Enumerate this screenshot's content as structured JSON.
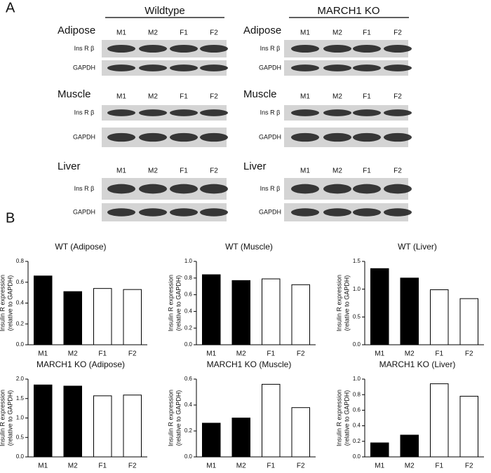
{
  "panel_labels": [
    "A",
    "B"
  ],
  "panel_a": {
    "groups": [
      {
        "title": "Wildtype",
        "tissues": [
          {
            "name": "Adipose",
            "lanes": [
              "M1",
              "M2",
              "F1",
              "F2"
            ],
            "blots": [
              "Ins R β",
              "GAPDH"
            ]
          },
          {
            "name": "Muscle",
            "lanes": [
              "M1",
              "M2",
              "F1",
              "F2"
            ],
            "blots": [
              "Ins R β",
              "GAPDH"
            ]
          },
          {
            "name": "Liver",
            "lanes": [
              "M1",
              "M2",
              "F1",
              "F2"
            ],
            "blots": [
              "Ins R β",
              "GAPDH"
            ]
          }
        ]
      },
      {
        "title": "MARCH1 KO",
        "tissues": [
          {
            "name": "Adipose",
            "lanes": [
              "M1",
              "M2",
              "F1",
              "F2"
            ],
            "blots": [
              "Ins R β",
              "GAPDH"
            ]
          },
          {
            "name": "Muscle",
            "lanes": [
              "M1",
              "M2",
              "F1",
              "F2"
            ],
            "blots": [
              "Ins R β",
              "GAPDH"
            ]
          },
          {
            "name": "Liver",
            "lanes": [
              "M1",
              "M2",
              "F1",
              "F2"
            ],
            "blots": [
              "Ins R β",
              "GAPDH"
            ]
          }
        ]
      }
    ]
  },
  "chart_data": [
    {
      "type": "bar",
      "title": "WT (Adipose)",
      "ylabel": [
        "Insulin R expression",
        "(relative to GAPDH)"
      ],
      "categories": [
        "M1",
        "M2",
        "F1",
        "F2"
      ],
      "values": [
        0.66,
        0.51,
        0.54,
        0.53
      ],
      "colors": [
        "#000000",
        "#000000",
        "#ffffff",
        "#ffffff"
      ],
      "ylim": [
        0,
        0.8
      ],
      "yticks": [
        {
          "value": 0,
          "label": "0.0"
        },
        0.2,
        0.4,
        0.6,
        0.8
      ]
    },
    {
      "type": "bar",
      "title": "WT (Muscle)",
      "ylabel": [
        "Insulin R expression",
        "(relative to GAPDH)"
      ],
      "categories": [
        "M1",
        "M2",
        "F1",
        "F2"
      ],
      "values": [
        0.84,
        0.77,
        0.79,
        0.72
      ],
      "colors": [
        "#000000",
        "#000000",
        "#ffffff",
        "#ffffff"
      ],
      "ylim": [
        0,
        1
      ],
      "yticks": [
        {
          "value": 0,
          "label": "0.0"
        },
        0.2,
        0.4,
        0.6,
        0.8,
        {
          "value": 1,
          "label": "1.0"
        }
      ]
    },
    {
      "type": "bar",
      "title": "WT (Liver)",
      "ylabel": [
        "Insulin R expression",
        "(relative to GAPDH)"
      ],
      "categories": [
        "M1",
        "M2",
        "F1",
        "F2"
      ],
      "values": [
        1.37,
        1.2,
        0.99,
        0.83
      ],
      "colors": [
        "#000000",
        "#000000",
        "#ffffff",
        "#ffffff"
      ],
      "ylim": [
        0,
        1.5
      ],
      "yticks": [
        {
          "value": 0,
          "label": "0.0"
        },
        0.5,
        {
          "value": 1,
          "label": "1.0"
        },
        1.5
      ]
    },
    {
      "type": "bar",
      "title": "MARCH1 KO (Adipose)",
      "ylabel": [
        "Insulin R expression",
        "(relative to GAPDH)"
      ],
      "categories": [
        "M1",
        "M2",
        "F1",
        "F2"
      ],
      "values": [
        1.85,
        1.82,
        1.57,
        1.59
      ],
      "colors": [
        "#000000",
        "#000000",
        "#ffffff",
        "#ffffff"
      ],
      "ylim": [
        0,
        2
      ],
      "yticks": [
        {
          "value": 0,
          "label": "0.0"
        },
        0.5,
        {
          "value": 1,
          "label": "1.0"
        },
        1.5,
        {
          "value": 2,
          "label": "2.0"
        }
      ]
    },
    {
      "type": "bar",
      "title": "MARCH1 KO (Muscle)",
      "ylabel": [
        "Insulin R expression",
        "(relative to GAPDH)"
      ],
      "categories": [
        "M1",
        "M2",
        "F1",
        "F2"
      ],
      "values": [
        0.26,
        0.3,
        0.56,
        0.38
      ],
      "colors": [
        "#000000",
        "#000000",
        "#ffffff",
        "#ffffff"
      ],
      "ylim": [
        0,
        0.6
      ],
      "yticks": [
        {
          "value": 0,
          "label": "0.0"
        },
        0.2,
        0.4,
        0.6
      ]
    },
    {
      "type": "bar",
      "title": "MARCH1 KO (Liver)",
      "ylabel": [
        "Insulin R expression",
        "(relative to GAPDH)"
      ],
      "categories": [
        "M1",
        "M2",
        "F1",
        "F2"
      ],
      "values": [
        0.18,
        0.28,
        0.94,
        0.78
      ],
      "colors": [
        "#000000",
        "#000000",
        "#ffffff",
        "#ffffff"
      ],
      "ylim": [
        0,
        1
      ],
      "yticks": [
        {
          "value": 0,
          "label": "0.0"
        },
        0.2,
        0.4,
        0.6,
        0.8,
        {
          "value": 1,
          "label": "1.0"
        }
      ]
    }
  ]
}
